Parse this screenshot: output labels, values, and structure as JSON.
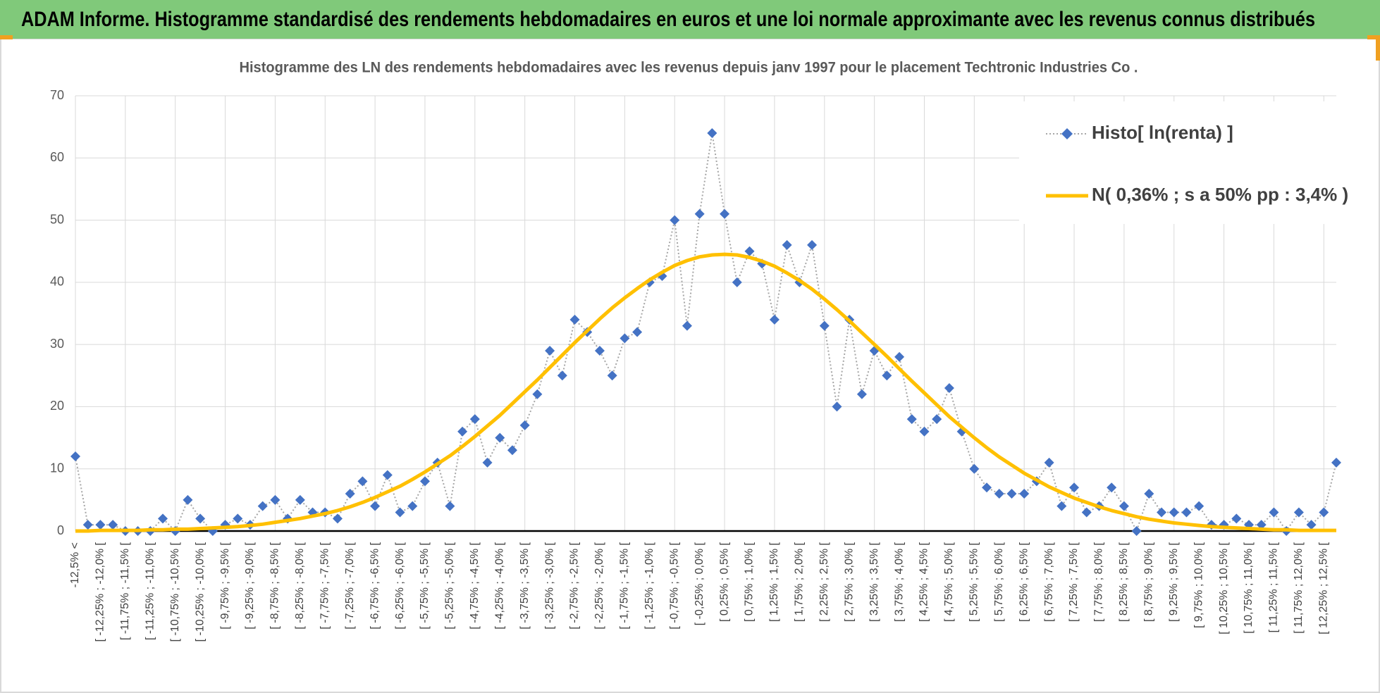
{
  "header": {
    "title": "ADAM Informe. Histogramme standardisé des rendements hebdomadaires en euros et une loi normale approximante avec les revenus connus distribués"
  },
  "chart_data": {
    "type": "line",
    "title": "Histogramme  des LN des rendements hebdomadaires avec les revenus depuis janv 1997 pour le placement Techtronic Industries Co .",
    "categories": [
      "-12,5% <",
      null,
      "[ -12,25% ; -12,0% [",
      null,
      "[ -11,75% ; -11,5% [",
      null,
      "[ -11,25% ; -11,0% [",
      null,
      "[ -10,75% ; -10,5% [",
      null,
      "[ -10,25% ; -10,0% [",
      null,
      "[ -9,75% ; -9,5% [",
      null,
      "[ -9,25% ; -9,0% [",
      null,
      "[ -8,75% ; -8,5% [",
      null,
      "[ -8,25% ; -8,0% [",
      null,
      "[ -7,75% ; -7,5% [",
      null,
      "[ -7,25% ; -7,0% [",
      null,
      "[ -6,75% ; -6,5% [",
      null,
      "[ -6,25% ; -6,0% [",
      null,
      "[ -5,75% ; -5,5% [",
      null,
      "[ -5,25% ; -5,0% [",
      null,
      "[ -4,75% ; -4,5% [",
      null,
      "[ -4,25% ; -4,0% [",
      null,
      "[ -3,75% ; -3,5% [",
      null,
      "[ -3,25% ; -3,0% [",
      null,
      "[ -2,75% ; -2,5% [",
      null,
      "[ -2,25% ; -2,0% [",
      null,
      "[ -1,75% ; -1,5% [",
      null,
      "[ -1,25% ; -1,0% [",
      null,
      "[ -0,75% ; -0,5% [",
      null,
      "[ -0,25% ; 0,0% [",
      null,
      "[ 0,25% ; 0,5% [",
      null,
      "[ 0,75% ; 1,0% [",
      null,
      "[ 1,25% ; 1,5% [",
      null,
      "[ 1,75% ; 2,0% [",
      null,
      "[ 2,25% ; 2,5% [",
      null,
      "[ 2,75% ; 3,0% [",
      null,
      "[ 3,25% ; 3,5% [",
      null,
      "[ 3,75% ; 4,0% [",
      null,
      "[ 4,25% ; 4,5% [",
      null,
      "[ 4,75% ; 5,0% [",
      null,
      "[ 5,25% ; 5,5% [",
      null,
      "[ 5,75% ; 6,0% [",
      null,
      "[ 6,25% ; 6,5% [",
      null,
      "[ 6,75% ; 7,0% [",
      null,
      "[ 7,25% ; 7,5% [",
      null,
      "[ 7,75% ; 8,0% [",
      null,
      "[ 8,25% ; 8,5% [",
      null,
      "[ 8,75% ; 9,0% [",
      null,
      "[ 9,25% ; 9,5% [",
      null,
      "[ 9,75% ; 10,0% [",
      null,
      "[ 10,25% ; 10,5% [",
      null,
      "[ 10,75% ; 11,0% [",
      null,
      "[ 11,25% ; 11,5% [",
      null,
      "[ 11,75% ; 12,0% [",
      null,
      "[ 12,25% ; 12,5% [",
      null
    ],
    "series": [
      {
        "name": "Histo[ ln(renta) ]",
        "color": "#4472c4",
        "values": [
          12,
          1,
          1,
          1,
          0,
          0,
          0,
          2,
          0,
          5,
          2,
          0,
          1,
          2,
          1,
          4,
          5,
          2,
          5,
          3,
          3,
          2,
          6,
          8,
          4,
          9,
          3,
          4,
          8,
          11,
          4,
          16,
          18,
          11,
          15,
          13,
          17,
          22,
          29,
          25,
          34,
          32,
          29,
          25,
          31,
          32,
          40,
          41,
          50,
          33,
          51,
          64,
          51,
          40,
          45,
          43,
          34,
          46,
          40,
          46,
          33,
          20,
          34,
          22,
          29,
          25,
          28,
          18,
          16,
          18,
          23,
          16,
          10,
          7,
          6,
          6,
          6,
          8,
          11,
          4,
          7,
          3,
          4,
          7,
          4,
          0,
          6,
          3,
          3,
          3,
          4,
          1,
          1,
          2,
          1,
          1,
          3,
          0,
          3,
          1,
          3,
          11
        ]
      },
      {
        "name": "N( 0,36% ; s a 50% pp : 3,4% )",
        "color": "#ffc000",
        "values": [
          0.0,
          0.0,
          0.1,
          0.1,
          0.1,
          0.1,
          0.2,
          0.2,
          0.3,
          0.3,
          0.4,
          0.5,
          0.6,
          0.7,
          0.9,
          1.1,
          1.4,
          1.7,
          2.0,
          2.4,
          2.8,
          3.3,
          3.9,
          4.6,
          5.4,
          6.3,
          7.2,
          8.3,
          9.5,
          10.8,
          12.1,
          13.6,
          15.2,
          16.9,
          18.6,
          20.5,
          22.4,
          24.3,
          26.3,
          28.3,
          30.3,
          32.2,
          34.1,
          35.9,
          37.5,
          39.0,
          40.4,
          41.6,
          42.7,
          43.5,
          44.1,
          44.4,
          44.5,
          44.4,
          44.0,
          43.4,
          42.6,
          41.5,
          40.3,
          38.9,
          37.3,
          35.6,
          33.8,
          31.9,
          30.0,
          28.1,
          26.1,
          24.1,
          22.2,
          20.3,
          18.4,
          16.7,
          15.0,
          13.4,
          11.9,
          10.6,
          9.3,
          8.2,
          7.1,
          6.2,
          5.3,
          4.6,
          3.9,
          3.3,
          2.8,
          2.3,
          1.9,
          1.6,
          1.3,
          1.1,
          0.9,
          0.7,
          0.6,
          0.5,
          0.4,
          0.3,
          0.2,
          0.2,
          0.1,
          0.1,
          0.1,
          0.1
        ]
      }
    ],
    "ylim": [
      0,
      70
    ],
    "yticks": [
      0,
      10,
      20,
      30,
      40,
      50,
      60,
      70
    ],
    "grid": true,
    "legend": "top-right"
  }
}
